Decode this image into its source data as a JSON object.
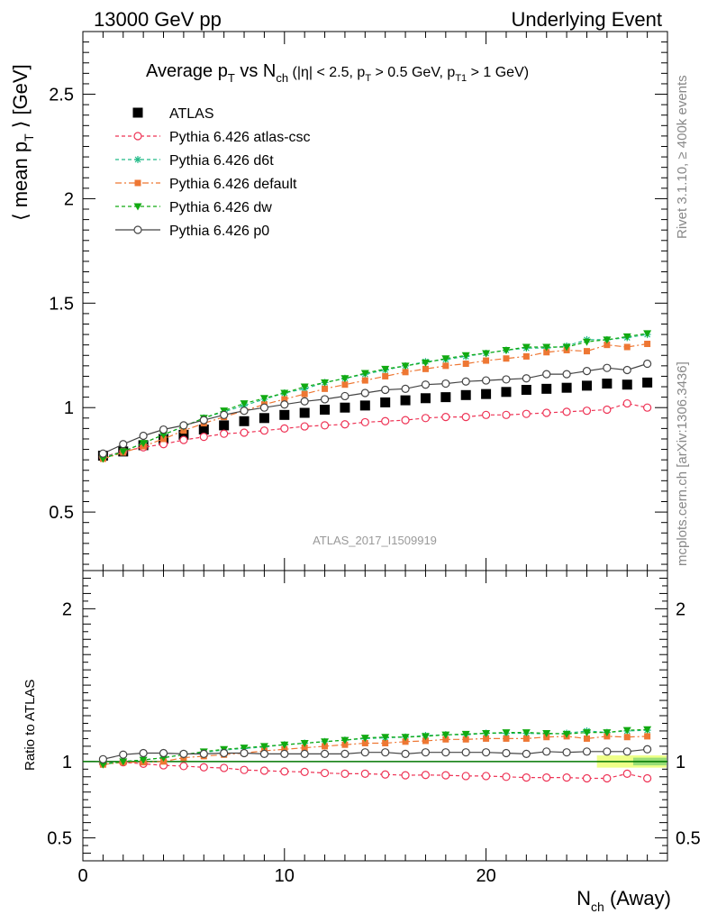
{
  "header": {
    "left": "13000 GeV pp",
    "right": "Underlying Event"
  },
  "side": {
    "top": "Rivet 3.1.10, ≥ 400k events",
    "bottom": "mcplots.cern.ch [arXiv:1306.3436]"
  },
  "watermark": "ATLAS_2017_I1509919",
  "title": {
    "main": "Average p",
    "sub_t": "T",
    "vs": " vs N",
    "sub_ch": "ch",
    "cuts": " (|η| < 2.5, p",
    "cut1": " > 0.5 GeV, p",
    "sub_t1": "T1",
    "cut2": " > 1 GeV)"
  },
  "colors": {
    "atlas": "#000000",
    "atlas_csc": "#ee3355",
    "d6t": "#22bb88",
    "default": "#ee7733",
    "dw": "#11aa11",
    "p0": "#444444",
    "band_yellow": "#eeff88",
    "band_green": "#99dd77"
  },
  "chart_data": [
    {
      "type": "scatter",
      "panel": "main",
      "xlabel": "N_ch (Away)",
      "ylabel": "⟨ mean p_T ⟩ [GeV]",
      "xlim": [
        0,
        29
      ],
      "ylim": [
        0.22,
        2.8
      ],
      "y_ticks": [
        "0.5",
        "1",
        "1.5",
        "2",
        "2.5"
      ],
      "x": [
        1,
        2,
        3,
        4,
        5,
        6,
        7,
        8,
        9,
        10,
        11,
        12,
        13,
        14,
        15,
        16,
        17,
        18,
        19,
        20,
        21,
        22,
        23,
        24,
        25,
        26,
        27,
        28
      ],
      "series": [
        {
          "name": "ATLAS",
          "marker": "square",
          "values": [
            0.77,
            0.79,
            0.82,
            0.85,
            0.87,
            0.895,
            0.915,
            0.935,
            0.95,
            0.965,
            0.975,
            0.99,
            1.0,
            1.01,
            1.025,
            1.035,
            1.045,
            1.05,
            1.06,
            1.065,
            1.075,
            1.085,
            1.09,
            1.095,
            1.105,
            1.115,
            1.11,
            1.12
          ]
        },
        {
          "name": "Pythia 6.426 atlas-csc",
          "marker": "open-circle",
          "values": [
            0.765,
            0.79,
            0.81,
            0.825,
            0.845,
            0.86,
            0.875,
            0.88,
            0.89,
            0.9,
            0.91,
            0.915,
            0.92,
            0.93,
            0.935,
            0.94,
            0.95,
            0.955,
            0.955,
            0.965,
            0.965,
            0.97,
            0.975,
            0.98,
            0.985,
            0.99,
            1.02,
            1.0
          ]
        },
        {
          "name": "Pythia 6.426 d6t",
          "marker": "star",
          "values": [
            0.76,
            0.79,
            0.83,
            0.87,
            0.91,
            0.95,
            0.98,
            1.01,
            1.04,
            1.07,
            1.09,
            1.12,
            1.14,
            1.16,
            1.18,
            1.2,
            1.22,
            1.23,
            1.245,
            1.26,
            1.275,
            1.285,
            1.285,
            1.295,
            1.325,
            1.325,
            1.335,
            1.35
          ]
        },
        {
          "name": "Pythia 6.426 default",
          "marker": "filled-square-small",
          "values": [
            0.755,
            0.785,
            0.815,
            0.85,
            0.89,
            0.925,
            0.955,
            0.985,
            1.015,
            1.04,
            1.065,
            1.09,
            1.11,
            1.13,
            1.15,
            1.17,
            1.185,
            1.2,
            1.21,
            1.225,
            1.235,
            1.245,
            1.265,
            1.275,
            1.27,
            1.3,
            1.29,
            1.305
          ]
        },
        {
          "name": "Pythia 6.426 dw",
          "marker": "triangle-down",
          "values": [
            0.755,
            0.79,
            0.83,
            0.87,
            0.91,
            0.95,
            0.985,
            1.02,
            1.045,
            1.07,
            1.1,
            1.12,
            1.14,
            1.165,
            1.185,
            1.2,
            1.215,
            1.235,
            1.25,
            1.26,
            1.275,
            1.29,
            1.29,
            1.29,
            1.315,
            1.325,
            1.34,
            1.355
          ]
        },
        {
          "name": "Pythia 6.426 p0",
          "marker": "open-circle",
          "values": [
            0.78,
            0.825,
            0.865,
            0.895,
            0.915,
            0.94,
            0.965,
            0.985,
            1.0,
            1.015,
            1.03,
            1.04,
            1.055,
            1.07,
            1.085,
            1.09,
            1.11,
            1.115,
            1.125,
            1.13,
            1.135,
            1.14,
            1.16,
            1.16,
            1.175,
            1.19,
            1.18,
            1.21
          ]
        }
      ]
    },
    {
      "type": "scatter",
      "panel": "ratio",
      "ylabel": "Ratio to ATLAS",
      "xlim": [
        0,
        29
      ],
      "ylim": [
        0.35,
        2.25
      ],
      "y_ticks": [
        "0.5",
        "1",
        "2"
      ],
      "x_ticks": [
        "0",
        "10",
        "20"
      ],
      "x": [
        1,
        2,
        3,
        4,
        5,
        6,
        7,
        8,
        9,
        10,
        11,
        12,
        13,
        14,
        15,
        16,
        17,
        18,
        19,
        20,
        21,
        22,
        23,
        24,
        25,
        26,
        27,
        28
      ],
      "series": [
        {
          "name": "Pythia 6.426 atlas-csc",
          "values": [
            0.99,
            0.995,
            0.985,
            0.975,
            0.97,
            0.962,
            0.958,
            0.945,
            0.94,
            0.935,
            0.932,
            0.925,
            0.92,
            0.92,
            0.915,
            0.91,
            0.912,
            0.91,
            0.905,
            0.905,
            0.9,
            0.895,
            0.895,
            0.895,
            0.89,
            0.89,
            0.92,
            0.89
          ]
        },
        {
          "name": "Pythia 6.426 d6t",
          "values": [
            0.985,
            1.0,
            1.01,
            1.025,
            1.045,
            1.06,
            1.075,
            1.085,
            1.095,
            1.11,
            1.12,
            1.13,
            1.14,
            1.15,
            1.155,
            1.16,
            1.17,
            1.175,
            1.175,
            1.185,
            1.185,
            1.185,
            1.18,
            1.185,
            1.2,
            1.19,
            1.2,
            1.205
          ]
        },
        {
          "name": "Pythia 6.426 default",
          "values": [
            0.98,
            0.995,
            0.995,
            1.0,
            1.025,
            1.035,
            1.045,
            1.055,
            1.07,
            1.08,
            1.09,
            1.1,
            1.11,
            1.12,
            1.12,
            1.13,
            1.135,
            1.145,
            1.145,
            1.15,
            1.15,
            1.15,
            1.16,
            1.165,
            1.15,
            1.165,
            1.16,
            1.165
          ]
        },
        {
          "name": "Pythia 6.426 dw",
          "values": [
            0.98,
            1.0,
            1.01,
            1.025,
            1.045,
            1.065,
            1.08,
            1.09,
            1.1,
            1.11,
            1.12,
            1.13,
            1.14,
            1.155,
            1.16,
            1.16,
            1.165,
            1.175,
            1.18,
            1.185,
            1.19,
            1.19,
            1.185,
            1.18,
            1.19,
            1.19,
            1.205,
            1.21
          ]
        },
        {
          "name": "Pythia 6.426 p0",
          "values": [
            1.015,
            1.045,
            1.055,
            1.055,
            1.05,
            1.05,
            1.055,
            1.055,
            1.05,
            1.05,
            1.05,
            1.05,
            1.05,
            1.06,
            1.06,
            1.05,
            1.06,
            1.06,
            1.06,
            1.06,
            1.055,
            1.05,
            1.065,
            1.06,
            1.065,
            1.065,
            1.065,
            1.08
          ]
        }
      ],
      "reference": {
        "value": 1.0,
        "band_from_x": 25.5
      }
    }
  ]
}
